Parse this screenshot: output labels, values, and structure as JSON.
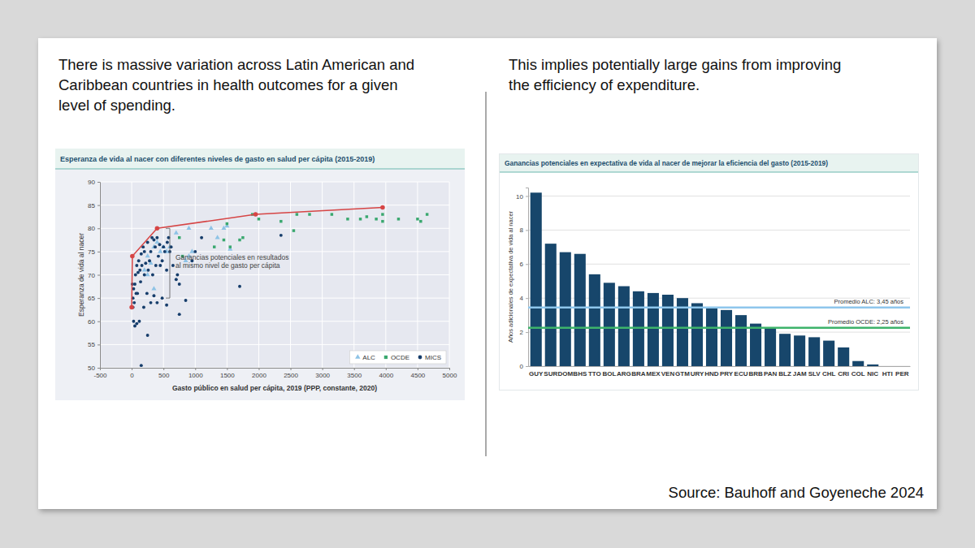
{
  "slide": {
    "left_text": [
      "There is massive variation across Latin American and",
      "Caribbean countries in health outcomes for a given",
      "level of spending."
    ],
    "right_text": [
      "This implies potentially large gains from improving",
      "the efficiency of expenditure."
    ],
    "source": "Source: Bauhoff and Goyeneche 2024"
  },
  "chart_data": [
    {
      "type": "scatter",
      "title": "Esperanza de vida al nacer con diferentes niveles de gasto en salud per cápita (2015-2019)",
      "x_label": "Gasto público en salud per cápita, 2019 (PPP, constante, 2020)",
      "y_label": "Esperanza de vida al nacer",
      "xlim": [
        -500,
        5000
      ],
      "xticks": [
        -500,
        0,
        500,
        1000,
        1500,
        2000,
        2500,
        3000,
        3500,
        4000,
        4500,
        5000
      ],
      "ylim": [
        50,
        90
      ],
      "yticks": [
        50,
        55,
        60,
        65,
        70,
        75,
        80,
        85,
        90
      ],
      "grid": true,
      "legend": "bottom-right",
      "series": [
        {
          "name": "ALC",
          "color": "#8ec3e6",
          "marker": "triangle",
          "x": [
            200,
            250,
            350,
            400,
            450,
            500,
            550,
            600,
            700,
            900,
            850,
            900,
            950,
            1250,
            1350,
            1450,
            1500,
            1550,
            350,
            250,
            300
          ],
          "values": [
            71,
            74,
            76,
            77,
            75,
            76,
            75,
            76,
            79,
            80,
            73,
            74,
            75,
            80,
            78,
            80,
            80.5,
            75.5,
            67,
            70,
            72.5
          ]
        },
        {
          "name": "OCDE",
          "color": "#3aa86f",
          "marker": "square",
          "x": [
            1500,
            1450,
            1700,
            1750,
            1550,
            2000,
            2350,
            2600,
            2800,
            3150,
            3400,
            3600,
            3700,
            3850,
            3950,
            3950,
            4200,
            4500,
            4550,
            4650,
            750,
            800,
            2550,
            1900,
            1300
          ],
          "values": [
            81,
            77.5,
            77.5,
            78,
            76,
            82,
            81.5,
            83,
            83,
            83,
            82,
            82,
            82.5,
            82,
            83,
            81.5,
            82,
            82,
            81.5,
            83,
            78,
            74,
            79.5,
            83,
            76
          ]
        },
        {
          "name": "MICS",
          "color": "#163d6b",
          "marker": "circle",
          "x": [
            20,
            30,
            50,
            80,
            120,
            150,
            250,
            300,
            400,
            480,
            550,
            750,
            850,
            20,
            30,
            50,
            60,
            70,
            80,
            100,
            110,
            130,
            150,
            160,
            180,
            200,
            220,
            250,
            280,
            300,
            320,
            350,
            370,
            400,
            420,
            450,
            480,
            500,
            520,
            550,
            600,
            620,
            650,
            700,
            720,
            750,
            950,
            1000,
            1100,
            1700,
            2350,
            10,
            40,
            90,
            140,
            200,
            240,
            260,
            330,
            380,
            440,
            560,
            580,
            190,
            350
          ],
          "values": [
            63,
            60,
            59,
            59.5,
            60,
            50.5,
            57,
            64,
            64,
            65,
            63.5,
            61.5,
            64.5,
            65,
            67,
            68,
            70,
            66,
            72,
            70.5,
            73,
            71,
            74.5,
            72,
            76,
            75,
            72.5,
            77,
            73,
            75,
            78,
            77.5,
            76,
            78,
            74,
            72,
            73,
            76,
            75,
            71,
            75,
            76,
            72,
            69,
            70,
            68,
            73,
            75,
            78,
            67.5,
            78.5,
            68,
            64,
            66,
            68.5,
            70,
            66,
            71,
            70,
            72,
            76.5,
            77,
            78,
            63,
            65.5
          ]
        },
        {
          "type": "line",
          "color": "#d64545",
          "marker": "circle",
          "x": [
            0,
            10,
            400,
            1950,
            3950
          ],
          "values": [
            63,
            74,
            80,
            83,
            84.5
          ]
        }
      ],
      "annotations": [
        {
          "text": [
            "Ganancias potenciales en resultados",
            "al mismo nivel de gasto per cápita"
          ],
          "x": 600,
          "y": [
            65,
            80
          ]
        }
      ]
    },
    {
      "type": "bar",
      "title": "Ganancias potenciales en expectativa de vida al nacer de mejorar la eficiencia del gasto (2015-2019)",
      "y_label": "Años adicionales de expectativa de vida al nacer",
      "categories": [
        "GUY",
        "SUR",
        "DOM",
        "BHS",
        "TTO",
        "BOL",
        "ARG",
        "BRA",
        "MEX",
        "VEN",
        "GTM",
        "URY",
        "HND",
        "PRY",
        "ECU",
        "BRB",
        "PAN",
        "BLZ",
        "JAM",
        "SLV",
        "CHL",
        "CRI",
        "COL",
        "NIC",
        "HTI",
        "PER"
      ],
      "values": [
        10.2,
        7.2,
        6.7,
        6.6,
        5.4,
        4.9,
        4.7,
        4.4,
        4.3,
        4.2,
        4.0,
        3.7,
        3.4,
        3.3,
        3.0,
        2.5,
        2.2,
        1.9,
        1.8,
        1.7,
        1.5,
        1.1,
        0.3,
        0.1,
        0,
        0
      ],
      "color": "#17466b",
      "ylim": [
        0,
        10.5
      ],
      "yticks": [
        0,
        2,
        4,
        6,
        8,
        10
      ],
      "grid": true,
      "reference_lines": [
        {
          "label": "Promedio ALC: 3,45 años",
          "value": 3.45,
          "color": "#8ec6ec"
        },
        {
          "label": "Promedio OCDE: 2,25 años",
          "value": 2.25,
          "color": "#3db36b"
        }
      ]
    }
  ]
}
